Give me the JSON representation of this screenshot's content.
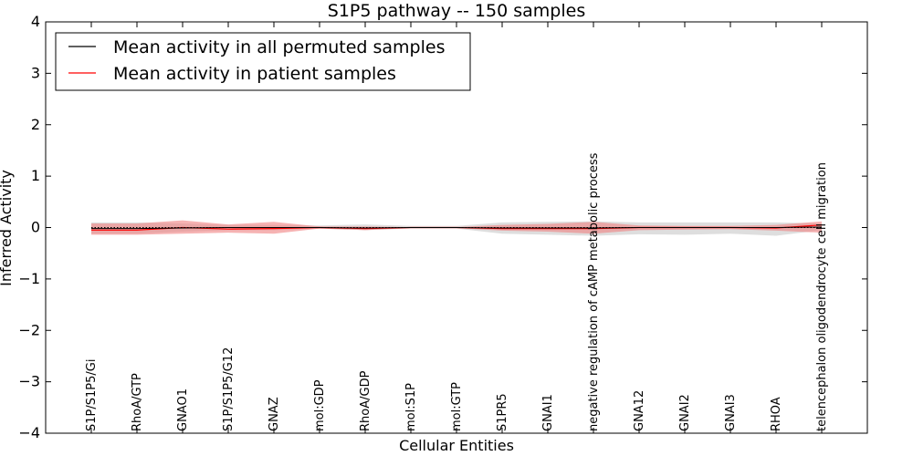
{
  "chart_data": {
    "type": "line",
    "title": "S1P5 pathway -- 150 samples",
    "xlabel": "Cellular Entities",
    "ylabel": "Inferred Activity",
    "ylim": [
      -4,
      4
    ],
    "yticks": [
      4,
      3,
      2,
      1,
      0,
      -1,
      -2,
      -3,
      -4
    ],
    "ytick_labels": [
      "4",
      "3",
      "2",
      "1",
      "0",
      "−1",
      "−2",
      "−3",
      "−4"
    ],
    "grid": false,
    "legend_position": "top-left",
    "categories": [
      "S1P/S1P5/Gi",
      "RhoA/GTP",
      "GNAO1",
      "S1P/S1P5/G12",
      "GNAZ",
      "mol:GDP",
      "RhoA/GDP",
      "mol:S1P",
      "mol:GTP",
      "S1PR5",
      "GNAI1",
      "negative regulation of cAMP metabolic process",
      "GNA12",
      "GNAI2",
      "GNAI3",
      "RHOA",
      "telencephalon oligodendrocyte cell migration"
    ],
    "series": [
      {
        "name": "Mean activity in all permuted samples",
        "color": "#000000",
        "values": [
          -0.02,
          -0.02,
          -0.01,
          0.0,
          0.0,
          0.0,
          -0.01,
          0.0,
          0.0,
          -0.01,
          -0.01,
          -0.01,
          0.0,
          0.0,
          0.0,
          0.0,
          0.01
        ],
        "band_lower": [
          -0.12,
          -0.12,
          -0.08,
          -0.05,
          -0.05,
          -0.02,
          -0.05,
          -0.02,
          -0.02,
          -0.12,
          -0.14,
          -0.16,
          -0.13,
          -0.14,
          -0.12,
          -0.16,
          -0.05
        ],
        "band_upper": [
          0.1,
          0.1,
          0.08,
          0.05,
          0.05,
          0.04,
          0.06,
          0.03,
          0.03,
          0.1,
          0.11,
          0.12,
          0.1,
          0.1,
          0.1,
          0.1,
          0.08
        ],
        "band_color": "#bdbdbd"
      },
      {
        "name": "Mean activity in patient samples",
        "color": "#ff0000",
        "values": [
          -0.05,
          -0.05,
          0.0,
          -0.03,
          -0.02,
          0.0,
          -0.02,
          0.0,
          0.0,
          -0.02,
          -0.02,
          -0.02,
          0.0,
          0.0,
          0.0,
          -0.01,
          0.05
        ],
        "band_lower": [
          -0.14,
          -0.14,
          -0.12,
          -0.1,
          -0.12,
          -0.02,
          -0.05,
          -0.01,
          -0.01,
          -0.06,
          -0.08,
          -0.12,
          -0.05,
          -0.04,
          -0.03,
          -0.06,
          -0.1
        ],
        "band_upper": [
          0.08,
          0.08,
          0.14,
          0.06,
          0.11,
          0.02,
          0.02,
          0.01,
          0.01,
          0.05,
          0.07,
          0.11,
          0.04,
          0.03,
          0.03,
          0.05,
          0.12
        ],
        "band_color": "#f08080"
      }
    ]
  }
}
